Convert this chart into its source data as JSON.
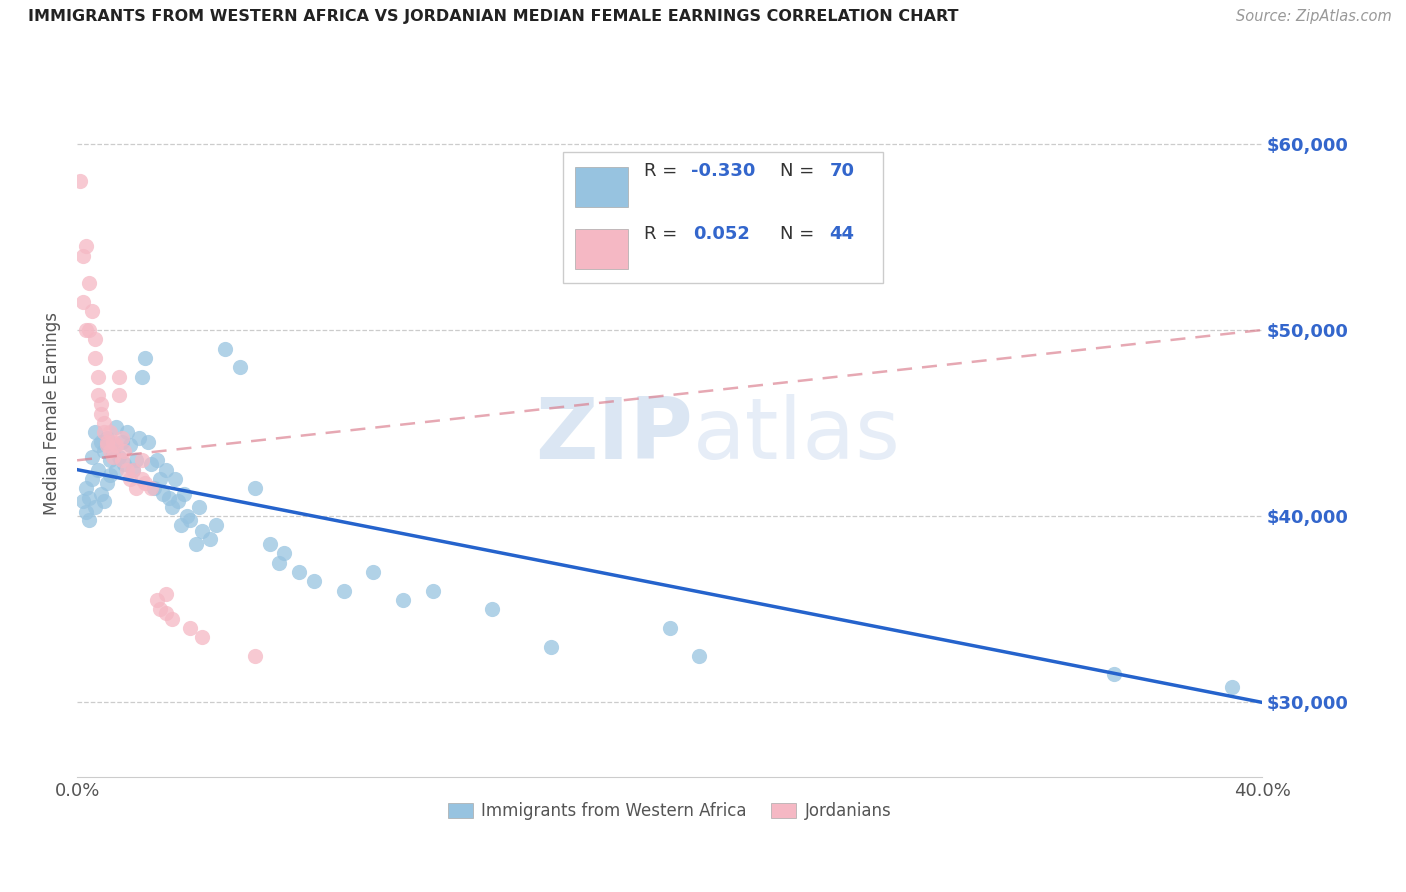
{
  "title": "IMMIGRANTS FROM WESTERN AFRICA VS JORDANIAN MEDIAN FEMALE EARNINGS CORRELATION CHART",
  "source": "Source: ZipAtlas.com",
  "ylabel": "Median Female Earnings",
  "yticks": [
    30000,
    40000,
    50000,
    60000
  ],
  "ytick_labels": [
    "$30,000",
    "$40,000",
    "$50,000",
    "$60,000"
  ],
  "xlim": [
    0.0,
    0.4
  ],
  "ylim": [
    26000,
    65000
  ],
  "watermark_zip": "ZIP",
  "watermark_atlas": "atlas",
  "legend_r1_label": "R = ",
  "legend_r1_val": "-0.330",
  "legend_n1_label": "N = ",
  "legend_n1_val": "70",
  "legend_r2_label": "R =  ",
  "legend_r2_val": "0.052",
  "legend_n2_label": "N = ",
  "legend_n2_val": "44",
  "blue_color": "#97C3E0",
  "pink_color": "#F5B8C4",
  "blue_line_color": "#2563CC",
  "pink_line_color": "#D97A8A",
  "title_color": "#222222",
  "right_axis_color": "#3366CC",
  "grid_color": "#CCCCCC",
  "blue_scatter": [
    [
      0.002,
      40800
    ],
    [
      0.003,
      40200
    ],
    [
      0.003,
      41500
    ],
    [
      0.004,
      41000
    ],
    [
      0.004,
      39800
    ],
    [
      0.005,
      43200
    ],
    [
      0.005,
      42000
    ],
    [
      0.006,
      44500
    ],
    [
      0.006,
      40500
    ],
    [
      0.007,
      43800
    ],
    [
      0.007,
      42500
    ],
    [
      0.008,
      44000
    ],
    [
      0.008,
      41200
    ],
    [
      0.009,
      43500
    ],
    [
      0.009,
      40800
    ],
    [
      0.01,
      44200
    ],
    [
      0.01,
      41800
    ],
    [
      0.011,
      43000
    ],
    [
      0.011,
      42200
    ],
    [
      0.012,
      43500
    ],
    [
      0.013,
      44800
    ],
    [
      0.013,
      42500
    ],
    [
      0.014,
      43200
    ],
    [
      0.015,
      44000
    ],
    [
      0.016,
      42800
    ],
    [
      0.017,
      44500
    ],
    [
      0.018,
      43800
    ],
    [
      0.019,
      42500
    ],
    [
      0.02,
      43000
    ],
    [
      0.021,
      44200
    ],
    [
      0.022,
      47500
    ],
    [
      0.023,
      48500
    ],
    [
      0.024,
      44000
    ],
    [
      0.025,
      42800
    ],
    [
      0.026,
      41500
    ],
    [
      0.027,
      43000
    ],
    [
      0.028,
      42000
    ],
    [
      0.029,
      41200
    ],
    [
      0.03,
      42500
    ],
    [
      0.031,
      41000
    ],
    [
      0.032,
      40500
    ],
    [
      0.033,
      42000
    ],
    [
      0.034,
      40800
    ],
    [
      0.035,
      39500
    ],
    [
      0.036,
      41200
    ],
    [
      0.037,
      40000
    ],
    [
      0.038,
      39800
    ],
    [
      0.04,
      38500
    ],
    [
      0.041,
      40500
    ],
    [
      0.042,
      39200
    ],
    [
      0.045,
      38800
    ],
    [
      0.047,
      39500
    ],
    [
      0.05,
      49000
    ],
    [
      0.055,
      48000
    ],
    [
      0.06,
      41500
    ],
    [
      0.065,
      38500
    ],
    [
      0.068,
      37500
    ],
    [
      0.07,
      38000
    ],
    [
      0.075,
      37000
    ],
    [
      0.08,
      36500
    ],
    [
      0.09,
      36000
    ],
    [
      0.1,
      37000
    ],
    [
      0.11,
      35500
    ],
    [
      0.12,
      36000
    ],
    [
      0.14,
      35000
    ],
    [
      0.16,
      33000
    ],
    [
      0.2,
      34000
    ],
    [
      0.21,
      32500
    ],
    [
      0.35,
      31500
    ],
    [
      0.39,
      30800
    ]
  ],
  "pink_scatter": [
    [
      0.001,
      58000
    ],
    [
      0.002,
      54000
    ],
    [
      0.002,
      51500
    ],
    [
      0.003,
      54500
    ],
    [
      0.003,
      50000
    ],
    [
      0.004,
      52500
    ],
    [
      0.004,
      50000
    ],
    [
      0.005,
      51000
    ],
    [
      0.006,
      49500
    ],
    [
      0.006,
      48500
    ],
    [
      0.007,
      47500
    ],
    [
      0.007,
      46500
    ],
    [
      0.008,
      46000
    ],
    [
      0.008,
      45500
    ],
    [
      0.009,
      45000
    ],
    [
      0.009,
      44500
    ],
    [
      0.01,
      44000
    ],
    [
      0.01,
      43800
    ],
    [
      0.011,
      44500
    ],
    [
      0.011,
      43500
    ],
    [
      0.012,
      44000
    ],
    [
      0.012,
      43200
    ],
    [
      0.013,
      43800
    ],
    [
      0.014,
      47500
    ],
    [
      0.014,
      46500
    ],
    [
      0.015,
      44200
    ],
    [
      0.015,
      43000
    ],
    [
      0.016,
      43500
    ],
    [
      0.017,
      42500
    ],
    [
      0.018,
      42000
    ],
    [
      0.019,
      42500
    ],
    [
      0.02,
      41500
    ],
    [
      0.022,
      42000
    ],
    [
      0.022,
      43000
    ],
    [
      0.023,
      41800
    ],
    [
      0.025,
      41500
    ],
    [
      0.027,
      35500
    ],
    [
      0.028,
      35000
    ],
    [
      0.03,
      35800
    ],
    [
      0.03,
      34800
    ],
    [
      0.032,
      34500
    ],
    [
      0.038,
      34000
    ],
    [
      0.042,
      33500
    ],
    [
      0.06,
      32500
    ]
  ],
  "blue_trendline_x": [
    0.0,
    0.4
  ],
  "blue_trendline_y": [
    42500,
    30000
  ],
  "pink_trendline_x": [
    0.0,
    0.4
  ],
  "pink_trendline_y": [
    43000,
    50000
  ]
}
